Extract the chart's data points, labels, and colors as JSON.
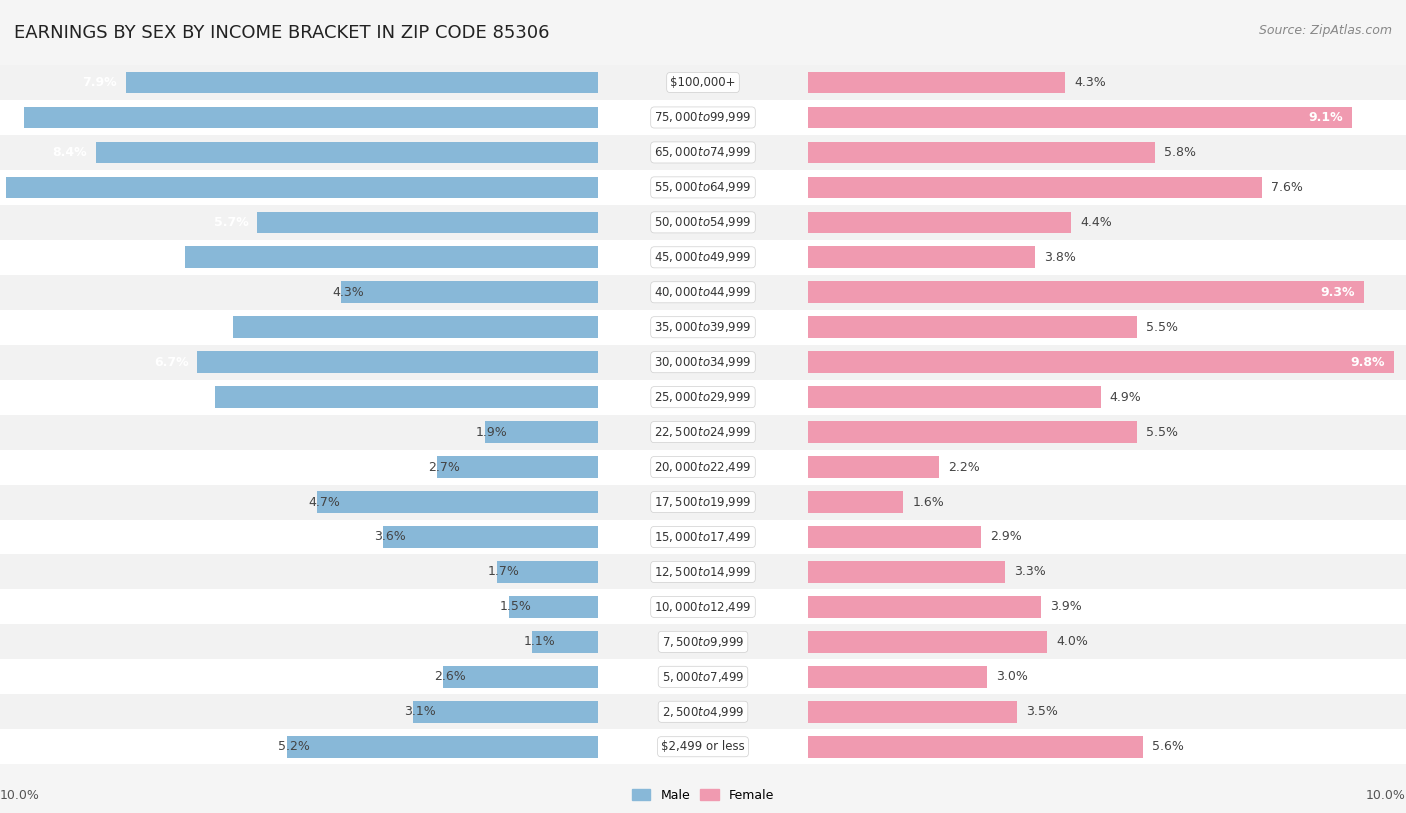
{
  "title": "EARNINGS BY SEX BY INCOME BRACKET IN ZIP CODE 85306",
  "source": "Source: ZipAtlas.com",
  "categories": [
    "$2,499 or less",
    "$2,500 to $4,999",
    "$5,000 to $7,499",
    "$7,500 to $9,999",
    "$10,000 to $12,499",
    "$12,500 to $14,999",
    "$15,000 to $17,499",
    "$17,500 to $19,999",
    "$20,000 to $22,499",
    "$22,500 to $24,999",
    "$25,000 to $29,999",
    "$30,000 to $34,999",
    "$35,000 to $39,999",
    "$40,000 to $44,999",
    "$45,000 to $49,999",
    "$50,000 to $54,999",
    "$55,000 to $64,999",
    "$65,000 to $74,999",
    "$75,000 to $99,999",
    "$100,000+"
  ],
  "male_values": [
    5.2,
    3.1,
    2.6,
    1.1,
    1.5,
    1.7,
    3.6,
    4.7,
    2.7,
    1.9,
    6.4,
    6.7,
    6.1,
    4.3,
    6.9,
    5.7,
    9.9,
    8.4,
    9.6,
    7.9
  ],
  "female_values": [
    5.6,
    3.5,
    3.0,
    4.0,
    3.9,
    3.3,
    2.9,
    1.6,
    2.2,
    5.5,
    4.9,
    9.8,
    5.5,
    9.3,
    3.8,
    4.4,
    7.6,
    5.8,
    9.1,
    4.3
  ],
  "male_color": "#88b8d8",
  "female_color": "#f09ab0",
  "male_label": "Male",
  "female_label": "Female",
  "axis_max": 10.0,
  "bg_row_odd": "#f2f2f2",
  "bg_row_even": "#ffffff",
  "title_fontsize": 13,
  "source_fontsize": 9,
  "label_fontsize": 9,
  "category_fontsize": 8.5,
  "bar_height": 0.62,
  "white_label_threshold_male": 5.5,
  "white_label_threshold_female": 9.0
}
